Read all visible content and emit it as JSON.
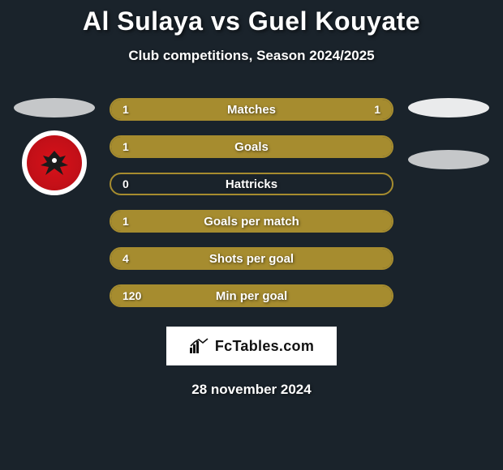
{
  "title": "Al Sulaya vs Guel Kouyate",
  "subtitle": "Club competitions, Season 2024/2025",
  "date": "28 november 2024",
  "colors": {
    "background": "#1a232b",
    "bar_border": "#a68c2f",
    "bar_fill": "#a68c2f",
    "bar_empty": "#1a232b",
    "left_ellipse": "#c5c7c9",
    "right_ellipse_top": "#eaebec",
    "right_ellipse_bottom": "#c5c7c9",
    "crest_red": "#d8121a",
    "watermark_bg": "#ffffff",
    "watermark_text": "#111111"
  },
  "left_player": {
    "name": "Al Sulaya",
    "ellipse_color": "#c5c7c9",
    "has_crest": true
  },
  "right_player": {
    "name": "Guel Kouyate",
    "ellipse_top_color": "#eaebec",
    "ellipse_bottom_color": "#c5c7c9"
  },
  "bars": [
    {
      "label": "Matches",
      "left_val": "1",
      "right_val": "1",
      "left_pct": 50,
      "right_pct": 50
    },
    {
      "label": "Goals",
      "left_val": "1",
      "right_val": "",
      "left_pct": 100,
      "right_pct": 0
    },
    {
      "label": "Hattricks",
      "left_val": "0",
      "right_val": "",
      "left_pct": 0,
      "right_pct": 0
    },
    {
      "label": "Goals per match",
      "left_val": "1",
      "right_val": "",
      "left_pct": 100,
      "right_pct": 0
    },
    {
      "label": "Shots per goal",
      "left_val": "4",
      "right_val": "",
      "left_pct": 100,
      "right_pct": 0
    },
    {
      "label": "Min per goal",
      "left_val": "120",
      "right_val": "",
      "left_pct": 100,
      "right_pct": 0
    }
  ],
  "bar_style": {
    "height": 28,
    "border_radius": 14,
    "border_width": 2,
    "gap": 18,
    "label_fontsize": 15,
    "value_fontsize": 14
  },
  "watermark": {
    "text": "FcTables.com"
  }
}
